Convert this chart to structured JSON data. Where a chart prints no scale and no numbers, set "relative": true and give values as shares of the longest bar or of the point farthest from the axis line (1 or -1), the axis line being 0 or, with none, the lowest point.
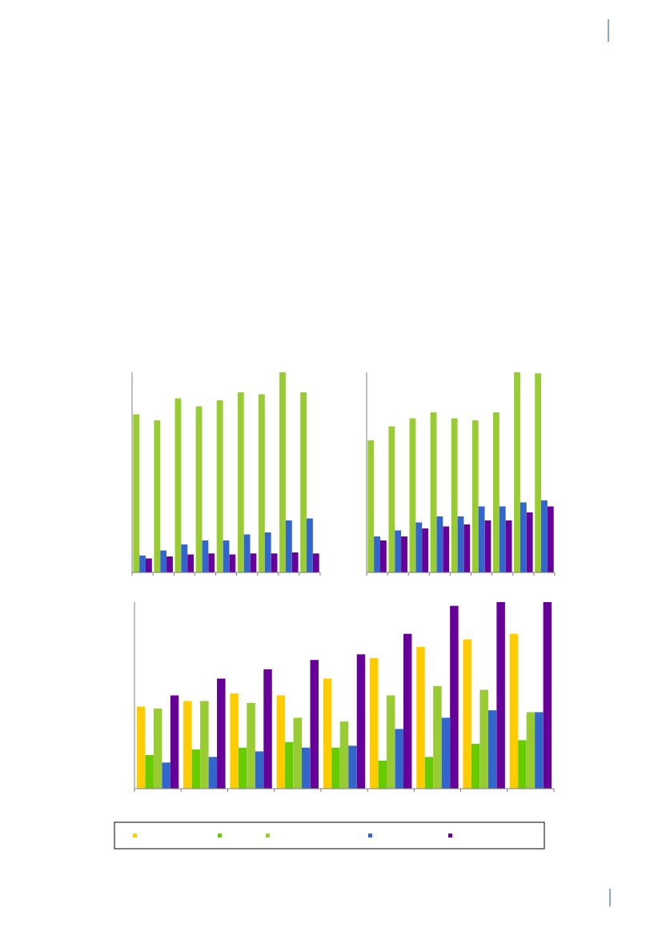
{
  "chart_data": [
    {
      "type": "bar",
      "relative": true,
      "categories": [
        null,
        null,
        null,
        null,
        null,
        null,
        null,
        null,
        null
      ],
      "series": [
        {
          "color": "#99cc33",
          "values": [
            0.79,
            0.76,
            0.87,
            0.83,
            0.86,
            0.9,
            0.89,
            1,
            0.9
          ]
        },
        {
          "color": "#3366cc",
          "values": [
            0.085,
            0.11,
            0.14,
            0.16,
            0.16,
            0.19,
            0.2,
            0.26,
            0.27
          ]
        },
        {
          "color": "#660099",
          "values": [
            0.07,
            0.08,
            0.09,
            0.095,
            0.09,
            0.095,
            0.095,
            0.1,
            0.095
          ]
        }
      ]
    },
    {
      "type": "bar",
      "relative": true,
      "categories": [
        null,
        null,
        null,
        null,
        null,
        null,
        null,
        null,
        null
      ],
      "series": [
        {
          "color": "#99cc33",
          "values": [
            0.66,
            0.73,
            0.77,
            0.8,
            0.77,
            0.76,
            0.8,
            1,
            0.995
          ]
        },
        {
          "color": "#3366cc",
          "values": [
            0.18,
            0.21,
            0.25,
            0.28,
            0.28,
            0.33,
            0.33,
            0.35,
            0.36
          ]
        },
        {
          "color": "#660099",
          "values": [
            0.16,
            0.18,
            0.22,
            0.23,
            0.24,
            0.26,
            0.26,
            0.3,
            0.33
          ]
        }
      ]
    },
    {
      "type": "bar",
      "relative": true,
      "categories": [
        null,
        null,
        null,
        null,
        null,
        null,
        null,
        null,
        null
      ],
      "series": [
        {
          "color": "#ffcc00",
          "values": [
            0.44,
            0.47,
            0.51,
            0.5,
            0.59,
            0.7,
            0.76,
            0.8,
            0.83
          ]
        },
        {
          "color": "#66cc00",
          "values": [
            0.18,
            0.21,
            0.22,
            0.25,
            0.22,
            0.15,
            0.17,
            0.24,
            0.26
          ]
        },
        {
          "color": "#99cc33",
          "values": [
            0.43,
            0.47,
            0.46,
            0.38,
            0.36,
            0.5,
            0.55,
            0.53,
            0.41
          ]
        },
        {
          "color": "#3366cc",
          "values": [
            0.14,
            0.17,
            0.2,
            0.22,
            0.23,
            0.32,
            0.38,
            0.42,
            0.41
          ]
        },
        {
          "color": "#660099",
          "values": [
            0.5,
            0.59,
            0.64,
            0.69,
            0.72,
            0.83,
            0.98,
            1,
            1
          ]
        }
      ]
    }
  ]
}
